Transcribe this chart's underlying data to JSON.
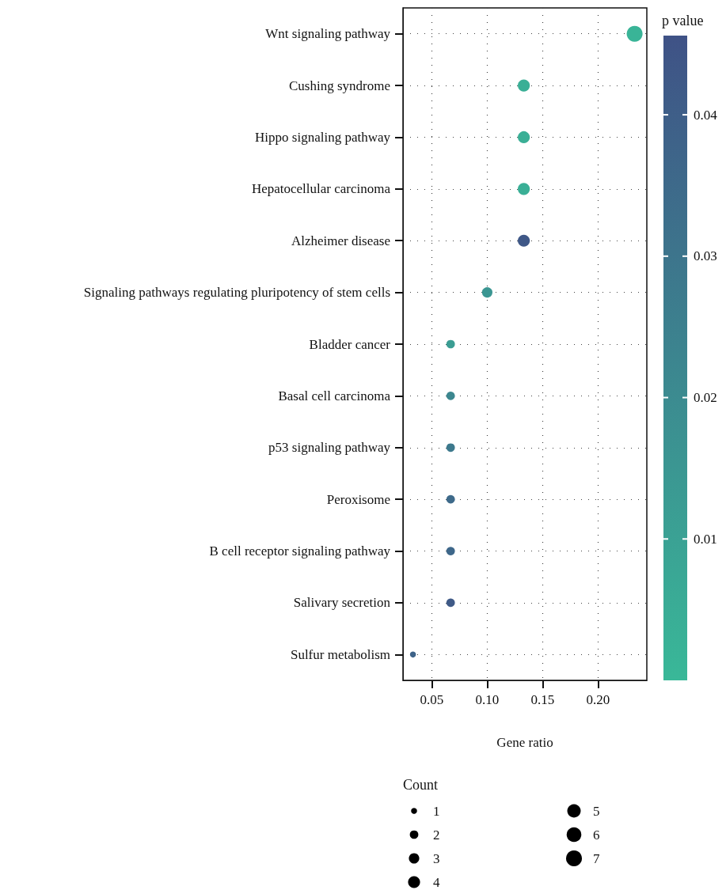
{
  "chart_data": {
    "type": "bubble",
    "categories": [
      "Wnt signaling pathway",
      "Cushing syndrome",
      "Hippo signaling pathway",
      "Hepatocellular carcinoma",
      "Alzheimer disease",
      "Signaling pathways regulating pluripotency of stem cells",
      "Bladder cancer",
      "Basal cell carcinoma",
      "p53 signaling pathway",
      "Peroxisome",
      "B cell receptor signaling pathway",
      "Salivary secretion",
      "Sulfur metabolism"
    ],
    "values": [
      0.233,
      0.133,
      0.133,
      0.133,
      0.133,
      0.1,
      0.067,
      0.067,
      0.067,
      0.067,
      0.067,
      0.067,
      0.033
    ],
    "sizes": [
      7,
      4,
      4,
      4,
      4,
      3,
      2,
      2,
      2,
      2,
      2,
      2,
      1
    ],
    "cvalues": [
      0.002,
      0.004,
      0.004,
      0.004,
      0.043,
      0.015,
      0.012,
      0.022,
      0.028,
      0.035,
      0.036,
      0.042,
      0.038
    ],
    "orientation": "horizontal",
    "size_legend": [
      1,
      2,
      3,
      4,
      5,
      6,
      7
    ],
    "legend_title": "Count",
    "clabel": "p value",
    "clim": [
      0,
      0.0456
    ],
    "cticks": [
      0.01,
      0.02,
      0.03,
      0.04
    ],
    "xlabel": "Gene ratio",
    "xlim": [
      0.024,
      0.244
    ],
    "xticks": [
      {
        "value": 0.05,
        "label": "0.05"
      },
      {
        "value": 0.1,
        "label": "0.10"
      },
      {
        "value": 0.15,
        "label": "0.15"
      },
      {
        "value": 0.2,
        "label": "0.20"
      }
    ],
    "grid": true
  }
}
